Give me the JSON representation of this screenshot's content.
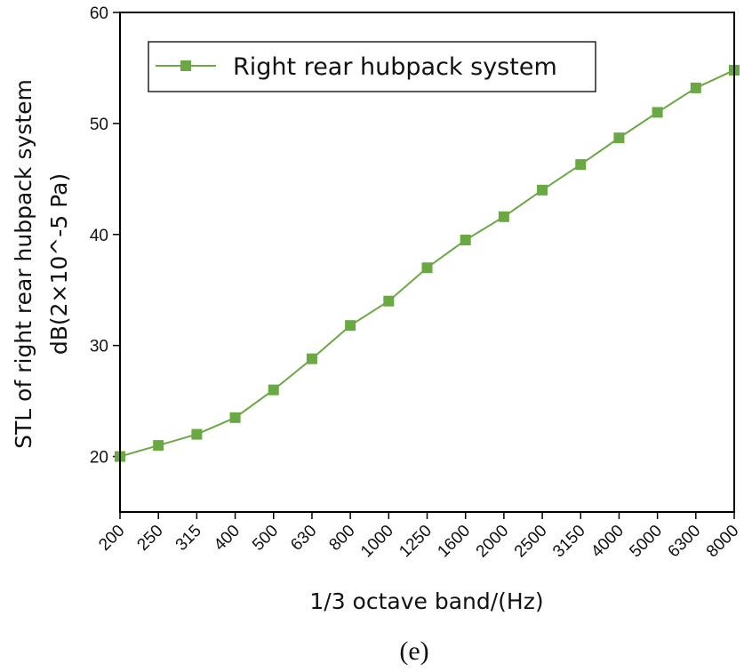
{
  "chart_data": {
    "type": "line",
    "title": "",
    "xlabel": "1/3 octave band/(Hz)",
    "ylabel_line1": "STL of right rear hubpack system",
    "ylabel_line2": "dB(2×10^-5 Pa)",
    "categories": [
      "200",
      "250",
      "315",
      "400",
      "500",
      "630",
      "800",
      "1000",
      "1250",
      "1600",
      "2000",
      "2500",
      "3150",
      "4000",
      "5000",
      "6300",
      "8000"
    ],
    "series": [
      {
        "name": "Right rear hubpack system",
        "color": "#6aa843",
        "values": [
          20.0,
          21.0,
          22.0,
          23.5,
          26.0,
          28.8,
          31.8,
          34.0,
          37.0,
          39.5,
          41.6,
          44.0,
          46.3,
          48.7,
          51.0,
          53.2,
          54.8
        ]
      }
    ],
    "ylim": [
      15,
      60
    ],
    "yticks": [
      20,
      30,
      40,
      50,
      60
    ],
    "grid": false,
    "legend_position": "top-left",
    "caption": "(e)"
  }
}
